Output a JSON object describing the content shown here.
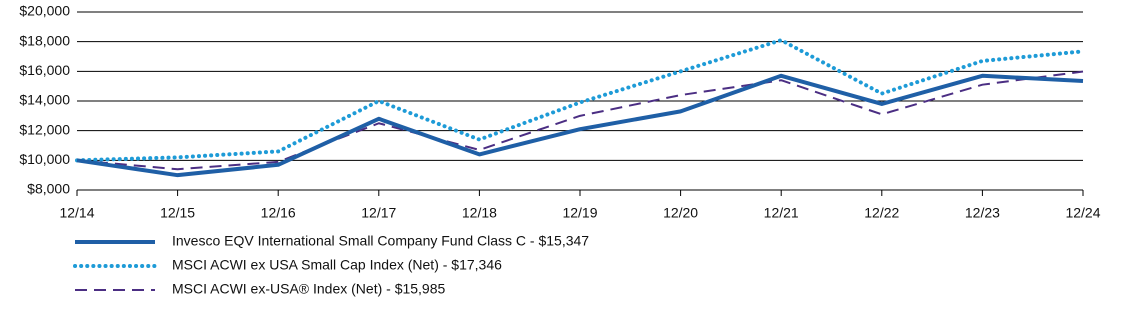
{
  "chart_data": {
    "type": "line",
    "categories": [
      "12/14",
      "12/15",
      "12/16",
      "12/17",
      "12/18",
      "12/19",
      "12/20",
      "12/21",
      "12/22",
      "12/23",
      "12/24"
    ],
    "series": [
      {
        "name": "Invesco EQV International Small Company Fund Class C - $15,347",
        "color": "#1f5fa6",
        "dash": "solid",
        "values": [
          10000,
          9000,
          9700,
          12800,
          10400,
          12100,
          13300,
          15700,
          13800,
          15700,
          15347
        ]
      },
      {
        "name": "MSCI ACWI ex USA Small Cap Index (Net) - $17,346",
        "color": "#1e9bd7",
        "dash": "dotted",
        "values": [
          10000,
          10200,
          10600,
          14000,
          11400,
          13900,
          16000,
          18100,
          14500,
          16700,
          17346
        ]
      },
      {
        "name": "MSCI ACWI ex-USA® Index (Net) - $15,985",
        "color": "#4b2e83",
        "dash": "dashed",
        "values": [
          10000,
          9400,
          9900,
          12500,
          10700,
          13000,
          14400,
          15400,
          13100,
          15100,
          15985
        ]
      }
    ],
    "ylim": [
      8000,
      20000
    ],
    "yticks": [
      {
        "value": 8000,
        "label": "$8,000"
      },
      {
        "value": 10000,
        "label": "$10,000"
      },
      {
        "value": 12000,
        "label": "$12,000"
      },
      {
        "value": 14000,
        "label": "$14,000"
      },
      {
        "value": 16000,
        "label": "$16,000"
      },
      {
        "value": 18000,
        "label": "$18,000"
      },
      {
        "value": 20000,
        "label": "$20,000"
      }
    ],
    "grid": true
  }
}
